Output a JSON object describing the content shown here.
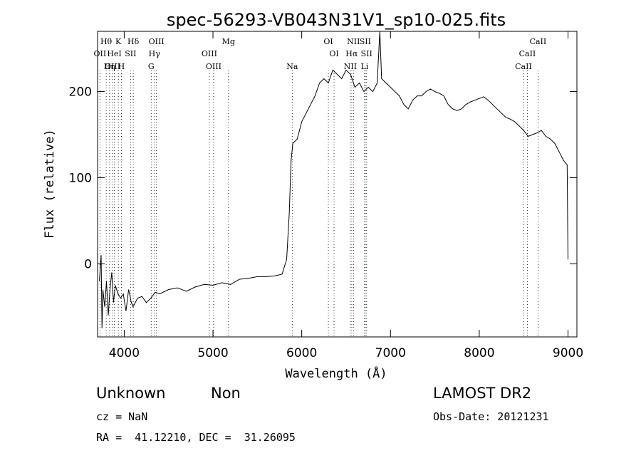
{
  "chart_data": {
    "type": "line",
    "title": "spec-56293-VB043N31V1_sp10-025.fits",
    "xlabel": "Wavelength (Å)",
    "ylabel": "Flux (relative)",
    "xlim": [
      3700,
      9100
    ],
    "ylim": [
      -85,
      270
    ],
    "xticks": [
      4000,
      5000,
      6000,
      7000,
      8000,
      9000
    ],
    "yticks": [
      0,
      100,
      200
    ],
    "grid": false,
    "series": [
      {
        "color": "#000000",
        "points": [
          [
            3720,
            -20
          ],
          [
            3740,
            10
          ],
          [
            3750,
            -75
          ],
          [
            3760,
            -30
          ],
          [
            3780,
            -50
          ],
          [
            3800,
            -20
          ],
          [
            3820,
            -60
          ],
          [
            3840,
            -30
          ],
          [
            3860,
            -10
          ],
          [
            3880,
            -45
          ],
          [
            3900,
            -25
          ],
          [
            3930,
            -35
          ],
          [
            3960,
            -40
          ],
          [
            3990,
            -35
          ],
          [
            4020,
            -55
          ],
          [
            4050,
            -30
          ],
          [
            4080,
            -45
          ],
          [
            4100,
            -50
          ],
          [
            4150,
            -40
          ],
          [
            4200,
            -38
          ],
          [
            4250,
            -45
          ],
          [
            4300,
            -40
          ],
          [
            4350,
            -33
          ],
          [
            4400,
            -35
          ],
          [
            4500,
            -30
          ],
          [
            4600,
            -28
          ],
          [
            4700,
            -32
          ],
          [
            4800,
            -27
          ],
          [
            4900,
            -24
          ],
          [
            5000,
            -25
          ],
          [
            5100,
            -22
          ],
          [
            5200,
            -24
          ],
          [
            5300,
            -18
          ],
          [
            5400,
            -17
          ],
          [
            5500,
            -15
          ],
          [
            5600,
            -15
          ],
          [
            5700,
            -14
          ],
          [
            5780,
            -12
          ],
          [
            5800,
            -5
          ],
          [
            5830,
            5
          ],
          [
            5860,
            60
          ],
          [
            5880,
            120
          ],
          [
            5900,
            140
          ],
          [
            5950,
            145
          ],
          [
            6000,
            165
          ],
          [
            6050,
            175
          ],
          [
            6100,
            185
          ],
          [
            6150,
            195
          ],
          [
            6200,
            210
          ],
          [
            6250,
            215
          ],
          [
            6300,
            210
          ],
          [
            6350,
            225
          ],
          [
            6400,
            220
          ],
          [
            6450,
            215
          ],
          [
            6500,
            225
          ],
          [
            6550,
            220
          ],
          [
            6600,
            205
          ],
          [
            6650,
            210
          ],
          [
            6700,
            200
          ],
          [
            6750,
            205
          ],
          [
            6800,
            200
          ],
          [
            6850,
            210
          ],
          [
            6880,
            270
          ],
          [
            6900,
            215
          ],
          [
            6950,
            210
          ],
          [
            7000,
            205
          ],
          [
            7050,
            200
          ],
          [
            7100,
            195
          ],
          [
            7150,
            185
          ],
          [
            7200,
            180
          ],
          [
            7250,
            190
          ],
          [
            7300,
            195
          ],
          [
            7350,
            195
          ],
          [
            7400,
            200
          ],
          [
            7450,
            203
          ],
          [
            7500,
            200
          ],
          [
            7550,
            198
          ],
          [
            7600,
            195
          ],
          [
            7650,
            185
          ],
          [
            7700,
            180
          ],
          [
            7750,
            178
          ],
          [
            7800,
            180
          ],
          [
            7850,
            185
          ],
          [
            7900,
            188
          ],
          [
            7950,
            190
          ],
          [
            8000,
            192
          ],
          [
            8050,
            194
          ],
          [
            8100,
            190
          ],
          [
            8150,
            185
          ],
          [
            8200,
            180
          ],
          [
            8250,
            175
          ],
          [
            8300,
            170
          ],
          [
            8350,
            168
          ],
          [
            8400,
            165
          ],
          [
            8450,
            160
          ],
          [
            8500,
            155
          ],
          [
            8550,
            148
          ],
          [
            8600,
            150
          ],
          [
            8650,
            152
          ],
          [
            8700,
            155
          ],
          [
            8750,
            148
          ],
          [
            8800,
            145
          ],
          [
            8850,
            140
          ],
          [
            8900,
            130
          ],
          [
            8950,
            120
          ],
          [
            8990,
            115
          ],
          [
            9000,
            5
          ]
        ]
      }
    ],
    "lines": [
      {
        "label": "Hθ",
        "x": 3797,
        "row": 0,
        "color": "#000000"
      },
      {
        "label": "K",
        "x": 3934,
        "row": 0,
        "color": "#000000"
      },
      {
        "label": "Hδ",
        "x": 4102,
        "row": 0,
        "color": "#000000"
      },
      {
        "label": "OIII",
        "x": 4363,
        "row": 0,
        "color": "#000000"
      },
      {
        "label": "Mg",
        "x": 5175,
        "row": 0,
        "color": "#000000"
      },
      {
        "label": "OI",
        "x": 6300,
        "row": 0,
        "color": "#000000"
      },
      {
        "label": "NII",
        "x": 6583,
        "row": 0,
        "color": "#000000"
      },
      {
        "label": "SII",
        "x": 6716,
        "row": 0,
        "color": "#000000"
      },
      {
        "label": "CaII",
        "x": 8662,
        "row": 0,
        "color": "#000000"
      },
      {
        "label": "OII",
        "x": 3727,
        "row": 1,
        "color": "#000000"
      },
      {
        "label": "HeI",
        "x": 3889,
        "row": 1,
        "color": "#000000"
      },
      {
        "label": "SII",
        "x": 4072,
        "row": 1,
        "color": "#000000"
      },
      {
        "label": "Hγ",
        "x": 4340,
        "row": 1,
        "color": "#000000"
      },
      {
        "label": "OIII",
        "x": 4959,
        "row": 1,
        "color": "#000000"
      },
      {
        "label": "OI",
        "x": 6364,
        "row": 1,
        "color": "#000000"
      },
      {
        "label": "Hα",
        "x": 6563,
        "row": 1,
        "color": "#cc0000"
      },
      {
        "label": "SII",
        "x": 6731,
        "row": 1,
        "color": "#000000"
      },
      {
        "label": "CaII",
        "x": 8542,
        "row": 1,
        "color": "#000000"
      },
      {
        "label": "OIII",
        "x": 3869,
        "row": 2,
        "color": "#000000"
      },
      {
        "label": "Hη",
        "x": 3835,
        "row": 2,
        "color": "#000000"
      },
      {
        "label": "H",
        "x": 3968,
        "row": 2,
        "color": "#000000"
      },
      {
        "label": "G",
        "x": 4304,
        "row": 2,
        "color": "#000000"
      },
      {
        "label": "OIII",
        "x": 5007,
        "row": 2,
        "color": "#000000"
      },
      {
        "label": "Na",
        "x": 5893,
        "row": 2,
        "color": "#000000"
      },
      {
        "label": "NII",
        "x": 6548,
        "row": 2,
        "color": "#000000"
      },
      {
        "label": "Li",
        "x": 6708,
        "row": 2,
        "color": "#000000"
      },
      {
        "label": "CaII",
        "x": 8498,
        "row": 2,
        "color": "#000000"
      }
    ]
  },
  "info": {
    "class": "Unknown",
    "subclass": "Non",
    "survey": "LAMOST DR2",
    "cz": "cz = NaN",
    "obs_date": "Obs-Date: 20121231",
    "coords": "RA =  41.12210, DEC =  31.26095"
  }
}
